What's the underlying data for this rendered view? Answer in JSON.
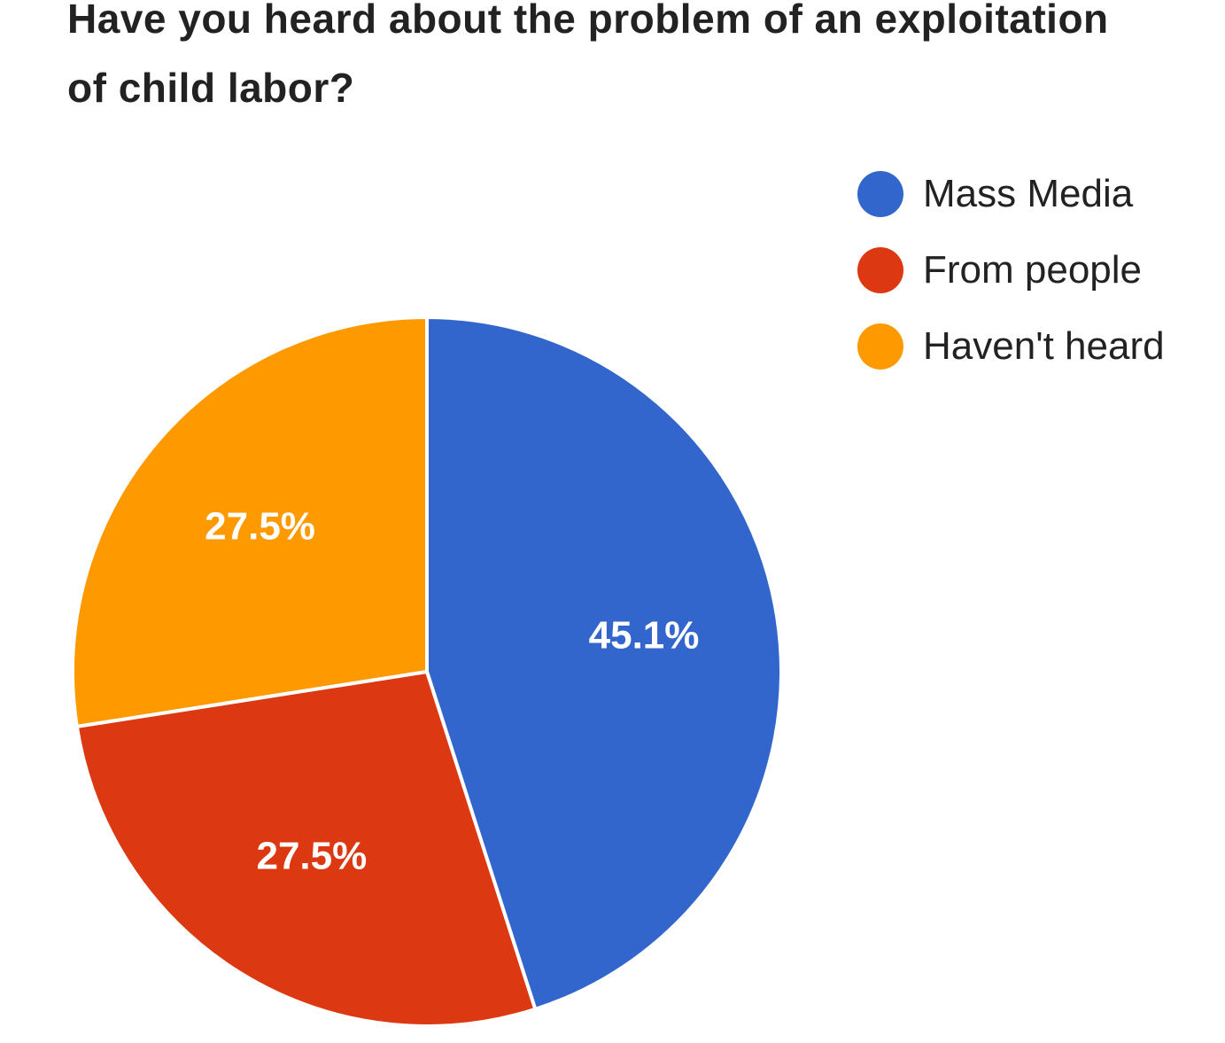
{
  "chart_data": {
    "type": "pie",
    "title": "Have you heard about the problem of an exploitation of child labor?",
    "title_lines": [
      "Have you heard about the problem of an exploitation",
      "of child labor?"
    ],
    "legend_position": "top-right",
    "slices": [
      {
        "name": "Mass Media",
        "value": 45.1,
        "label": "45.1%",
        "color": "#3366cc"
      },
      {
        "name": "From people",
        "value": 27.5,
        "label": "27.5%",
        "color": "#dc3912"
      },
      {
        "name": "Haven't heard",
        "value": 27.5,
        "label": "27.5%",
        "color": "#ff9900"
      }
    ]
  }
}
